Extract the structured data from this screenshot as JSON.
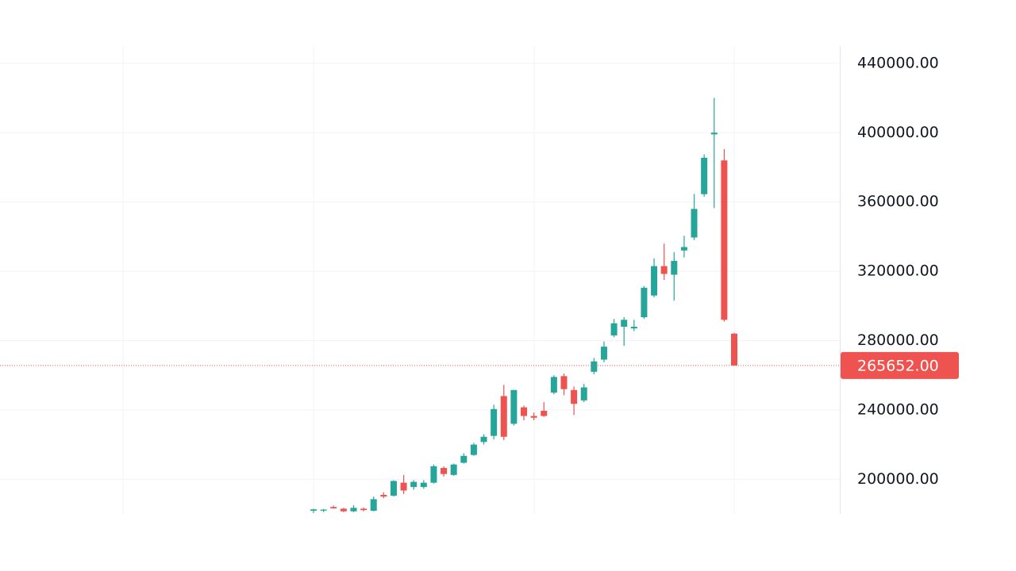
{
  "chart_data": {
    "type": "candlestick",
    "up_color": "#26a69a",
    "down_color": "#ef5350",
    "open": [
      181800,
      181900,
      184000,
      183000,
      181500,
      183000,
      181800,
      191000,
      190500,
      198000,
      195500,
      195500,
      198000,
      206500,
      202500,
      209500,
      214000,
      221500,
      225000,
      248000,
      232000,
      241500,
      236500,
      239500,
      250000,
      259500,
      251500,
      245500,
      262000,
      269000,
      283000,
      288000,
      287000,
      293500,
      306000,
      323000,
      318000,
      332000,
      339500,
      364500,
      399000,
      384000,
      284000
    ],
    "high": [
      183000,
      182800,
      184800,
      183500,
      185000,
      183800,
      190000,
      192500,
      199500,
      202500,
      199500,
      199500,
      208500,
      207500,
      209000,
      215000,
      221000,
      226000,
      243000,
      254500,
      251500,
      242500,
      238500,
      244500,
      260000,
      261000,
      253500,
      255000,
      270000,
      279500,
      292500,
      293500,
      292000,
      311500,
      327500,
      336000,
      331000,
      340500,
      364600,
      387500,
      420000,
      390500,
      284500
    ],
    "low": [
      180500,
      181000,
      183000,
      181000,
      181000,
      181500,
      181500,
      189000,
      190000,
      191500,
      194000,
      194500,
      197500,
      201500,
      202000,
      209000,
      213500,
      220000,
      223000,
      222500,
      231000,
      234000,
      234000,
      236000,
      249000,
      248500,
      237000,
      244500,
      260500,
      267500,
      282000,
      277000,
      285500,
      292500,
      305000,
      315000,
      303000,
      328000,
      338000,
      363000,
      356500,
      291000,
      265652
    ],
    "close": [
      182600,
      182500,
      183200,
      181500,
      183500,
      182200,
      188500,
      190000,
      199000,
      193500,
      198500,
      198000,
      207500,
      203000,
      208500,
      213500,
      220000,
      224500,
      240500,
      224500,
      251500,
      236500,
      235500,
      236500,
      259000,
      252000,
      243500,
      253000,
      268000,
      276500,
      290000,
      292000,
      288000,
      310500,
      323000,
      318500,
      326000,
      334000,
      356000,
      385500,
      400000,
      292000,
      265652
    ],
    "last_price": {
      "value": 265652,
      "label": "265652.00"
    },
    "ylim": [
      180000,
      450000
    ],
    "yticks": [
      {
        "value": 200000,
        "label": "200000.00"
      },
      {
        "value": 240000,
        "label": "240000.00"
      },
      {
        "value": 280000,
        "label": "280000.00"
      },
      {
        "value": 320000,
        "label": "320000.00"
      },
      {
        "value": 360000,
        "label": "360000.00"
      },
      {
        "value": 400000,
        "label": "400000.00"
      },
      {
        "value": 440000,
        "label": "440000.00"
      }
    ],
    "grid": true
  }
}
